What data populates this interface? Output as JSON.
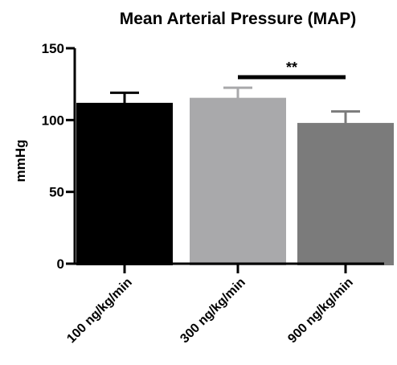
{
  "chart_data": {
    "type": "bar",
    "title": "Mean Arterial Pressure (MAP)",
    "xlabel": "",
    "ylabel": "mmHg",
    "ylim": [
      0,
      150
    ],
    "yticks": [
      "0",
      "50",
      "100",
      "150"
    ],
    "grid": false,
    "categories": [
      "100 ng/kg/min",
      "300 ng/kg/min",
      "900 ng/kg/min"
    ],
    "values": [
      112,
      115.5,
      98
    ],
    "errors": [
      7,
      7,
      8
    ],
    "colors": [
      "#000000",
      "#a9a9ab",
      "#7b7b7b"
    ],
    "significance": {
      "from": 1,
      "to": 2,
      "label": "**"
    }
  }
}
